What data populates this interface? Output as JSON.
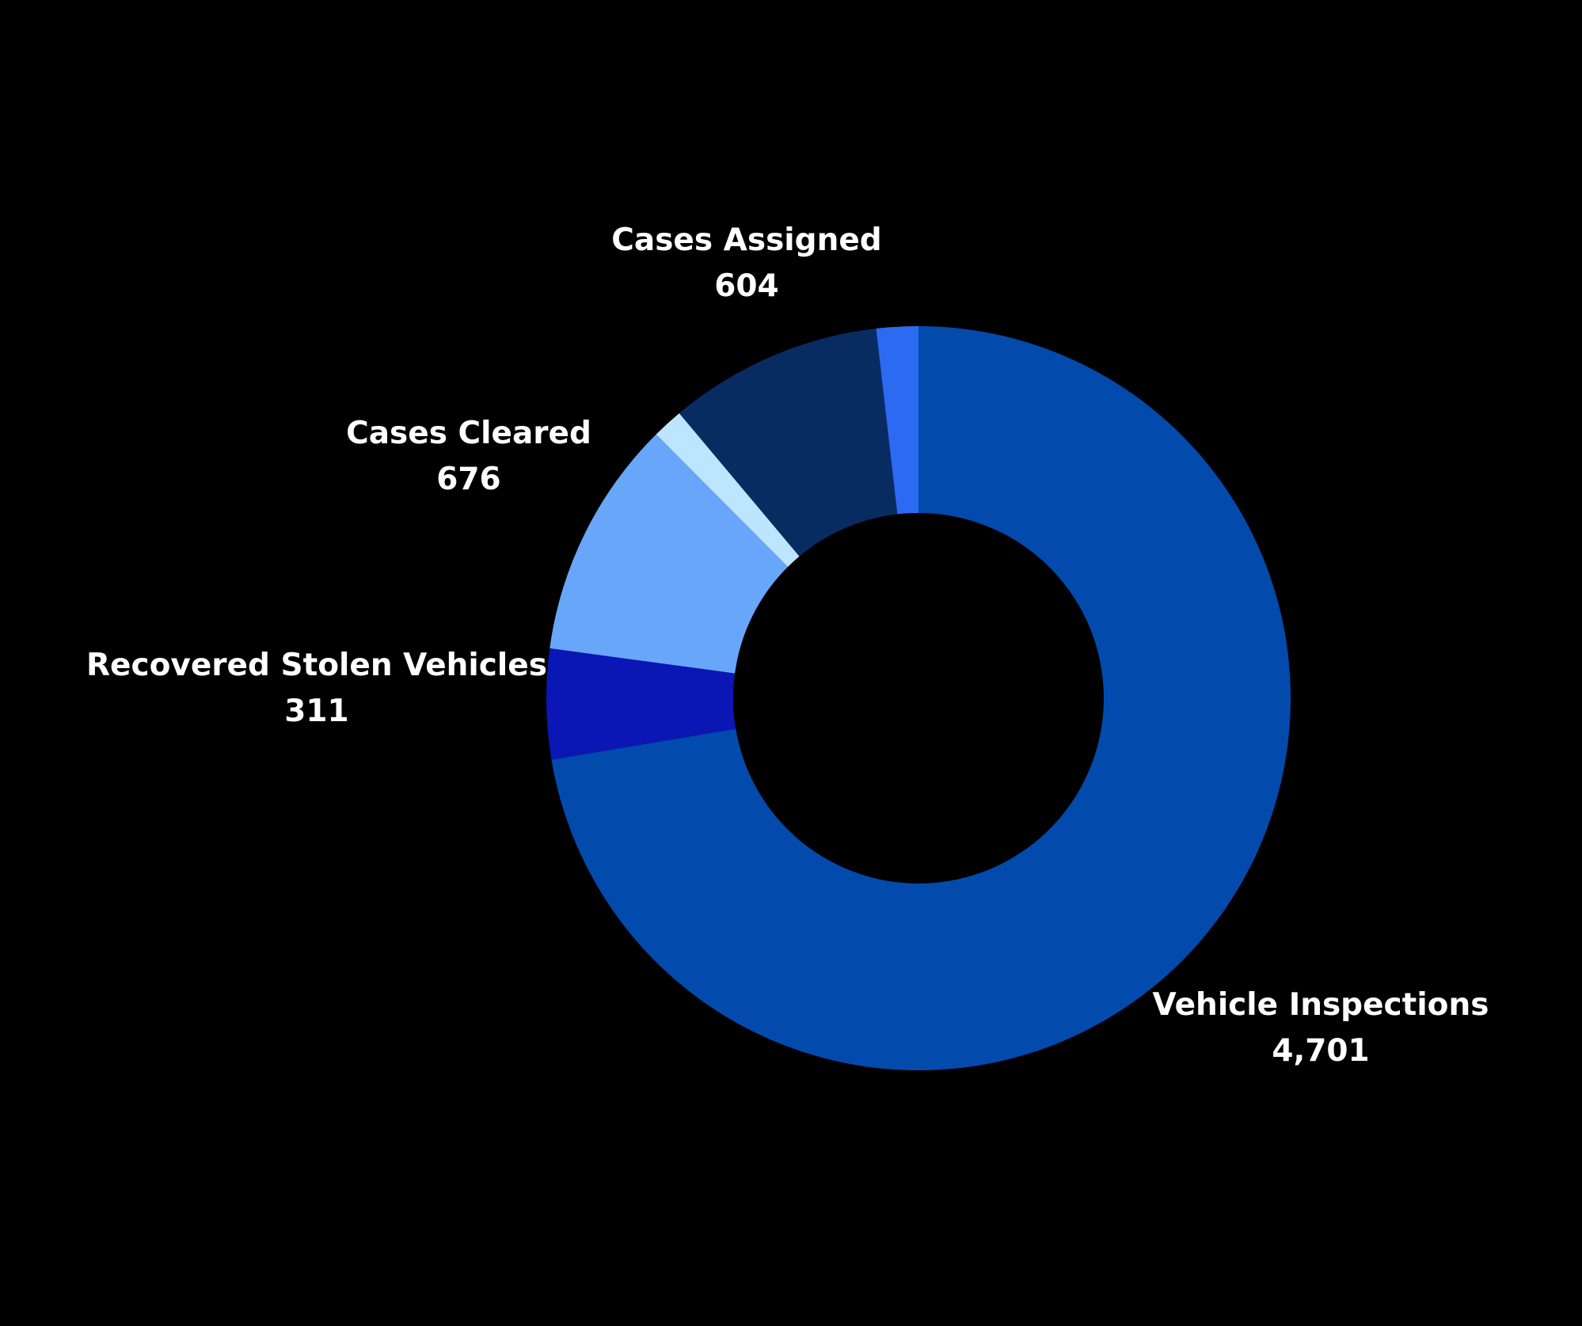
{
  "chart_data": {
    "type": "pie",
    "variant": "donut",
    "title": "",
    "background": "#000000",
    "label_color": "#ffffff",
    "slices": [
      {
        "name": "Vehicle Inspections",
        "value": 4701,
        "display_value": "4,701",
        "color": "#034AAD",
        "show_label": true
      },
      {
        "name": "Recovered Stolen Vehicles",
        "value": 311,
        "display_value": "311",
        "color": "#0A17B4",
        "show_label": true
      },
      {
        "name": "Cases Cleared",
        "value": 676,
        "display_value": "676",
        "color": "#68A6FA",
        "show_label": true
      },
      {
        "name": "",
        "value": 87,
        "display_value": "",
        "color": "#BEE5FF",
        "show_label": false
      },
      {
        "name": "Cases Assigned",
        "value": 604,
        "display_value": "604",
        "color": "#082C62",
        "show_label": true
      },
      {
        "name": "",
        "value": 118,
        "display_value": "",
        "color": "#2D6AF2",
        "show_label": false
      }
    ]
  }
}
